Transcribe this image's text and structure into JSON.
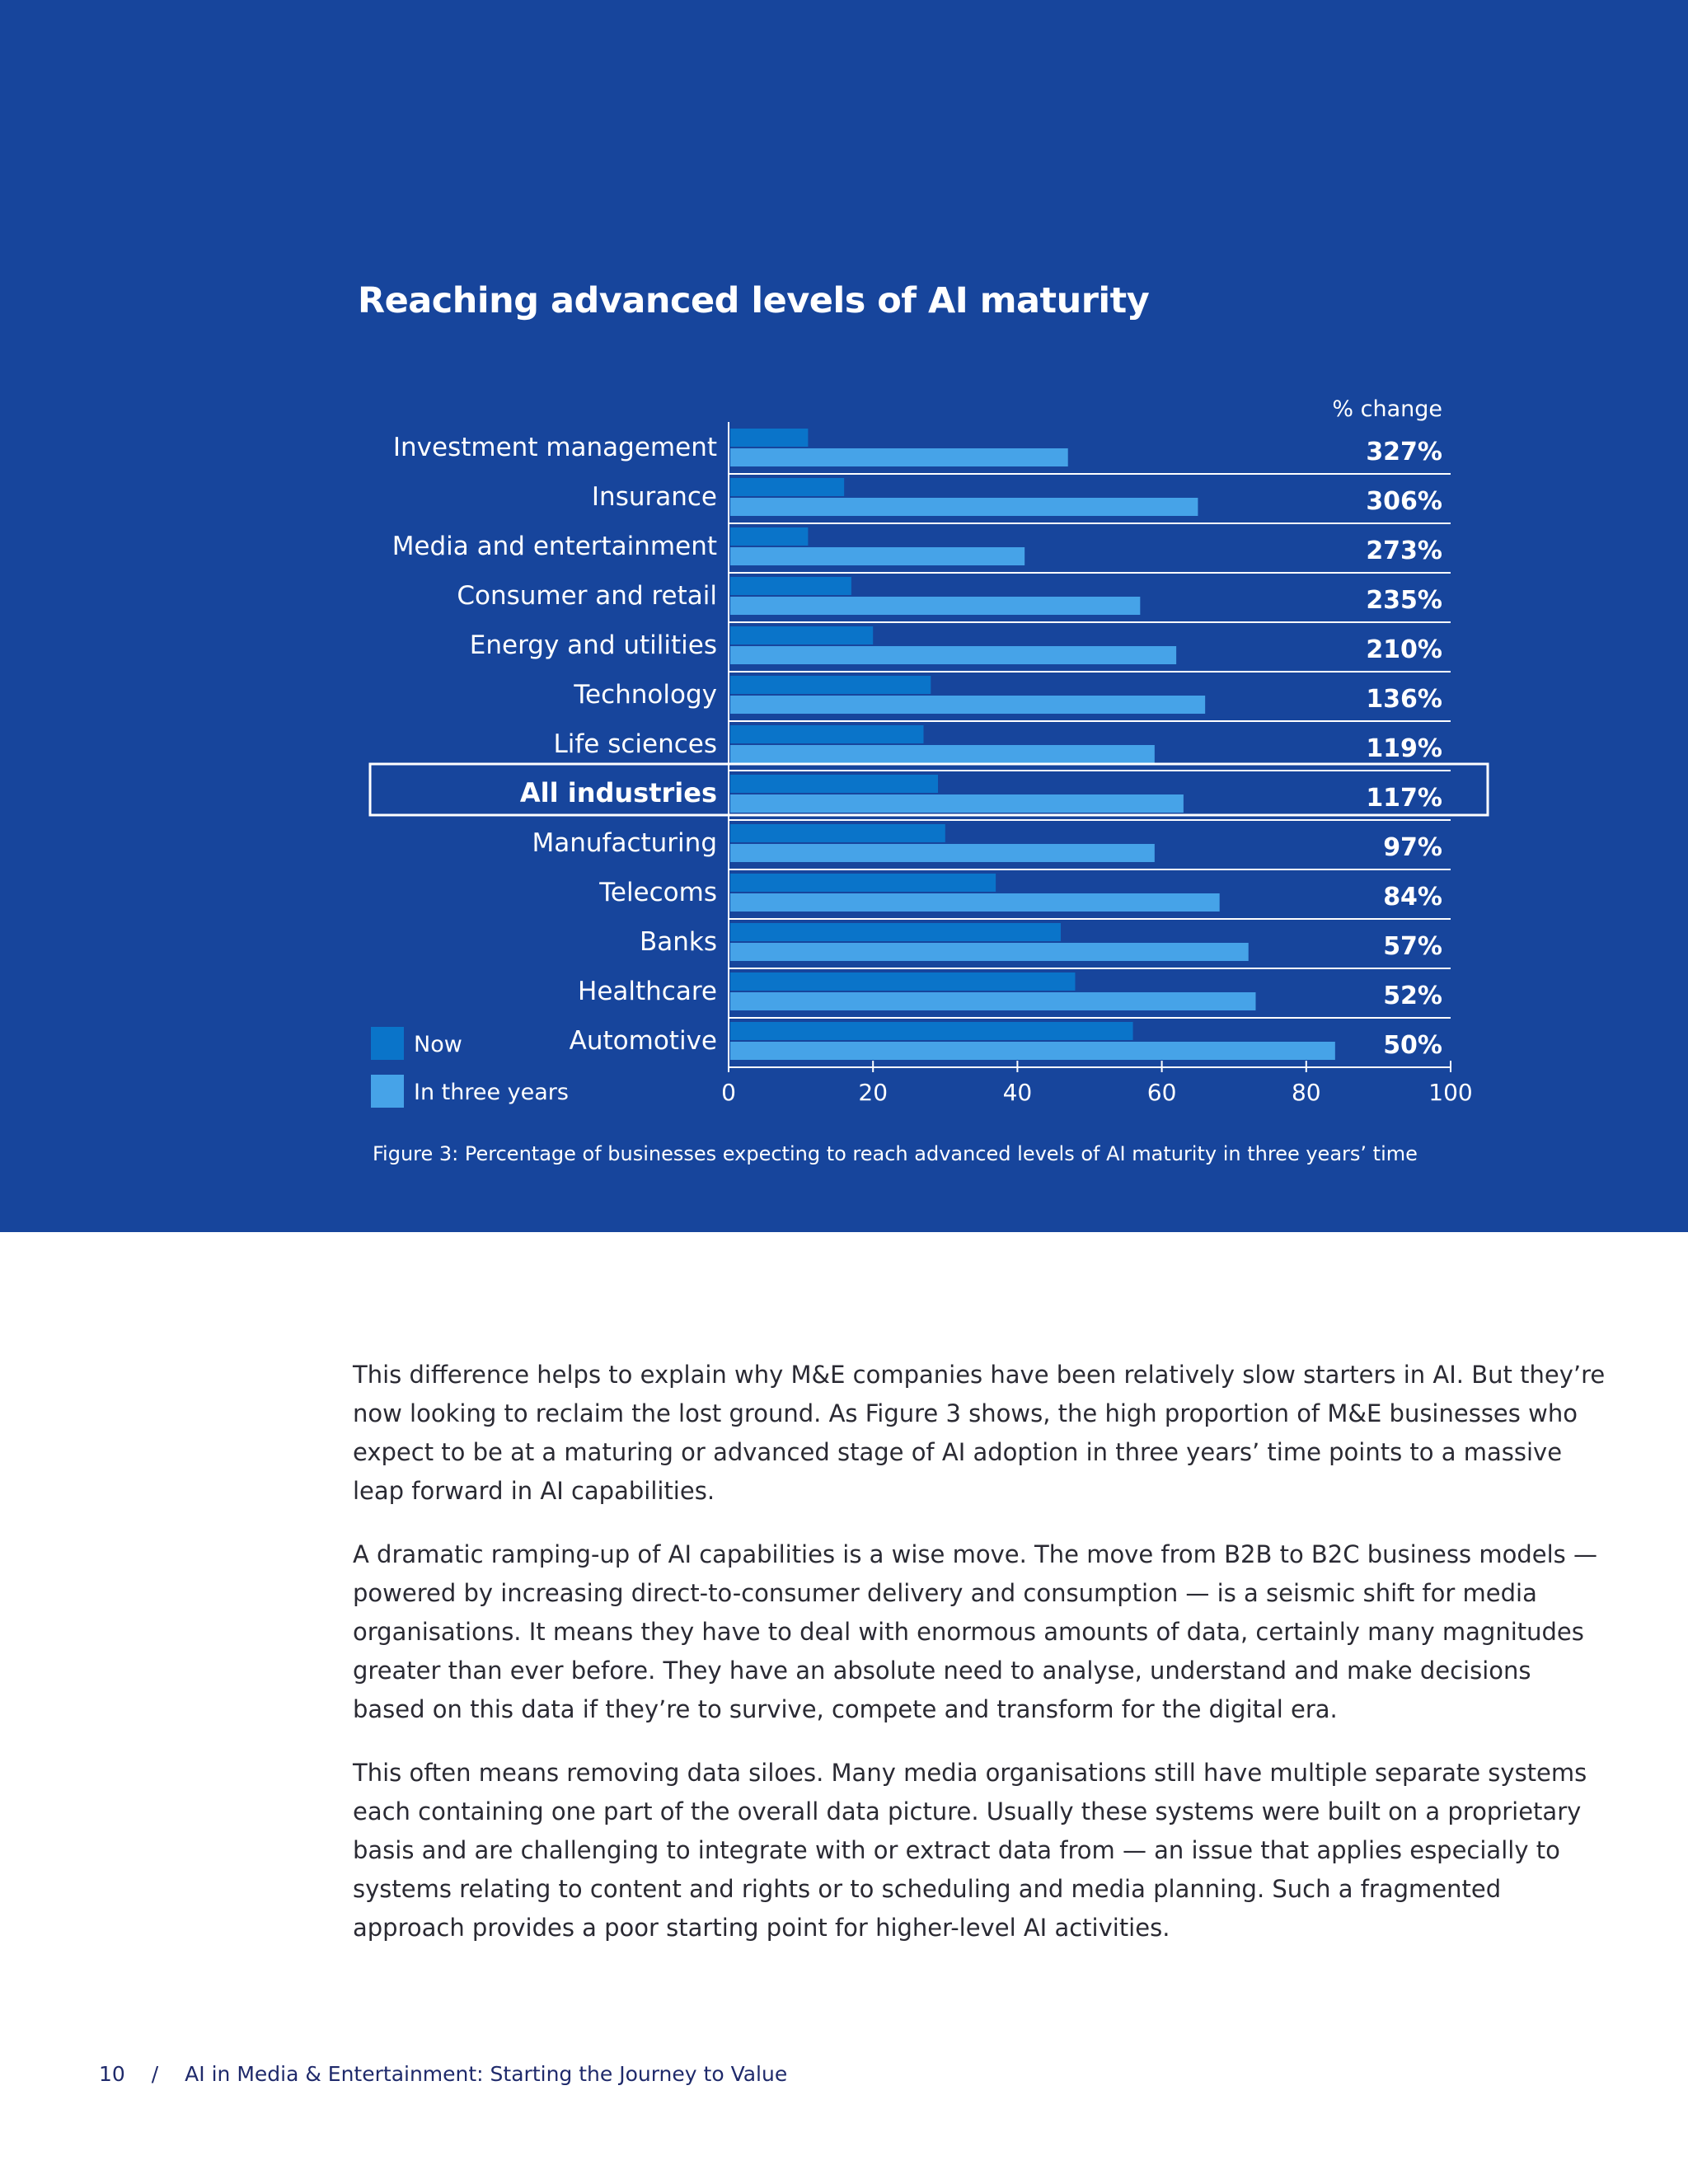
{
  "chart_data": {
    "type": "bar",
    "title": "Reaching advanced levels of AI maturity",
    "categories": [
      "Investment management",
      "Insurance",
      "Media and entertainment",
      "Consumer and retail",
      "Energy and utilities",
      "Technology",
      "Life sciences",
      "All industries",
      "Manufacturing",
      "Telecoms",
      "Banks",
      "Healthcare",
      "Automotive"
    ],
    "highlight_category": "All industries",
    "series": [
      {
        "name": "Now",
        "color": "#0a74c9",
        "values": [
          11,
          16,
          11,
          17,
          20,
          28,
          27,
          29,
          30,
          37,
          46,
          48,
          56
        ]
      },
      {
        "name": "In three years",
        "color": "#46a3e8",
        "values": [
          47,
          65,
          41,
          57,
          62,
          66,
          59,
          63,
          59,
          68,
          72,
          73,
          84
        ]
      }
    ],
    "change_header": "% change",
    "change_labels": [
      "327%",
      "306%",
      "273%",
      "235%",
      "210%",
      "136%",
      "119%",
      "117%",
      "97%",
      "84%",
      "57%",
      "52%",
      "50%"
    ],
    "xlim": [
      0,
      100
    ],
    "xticks": [
      0,
      20,
      40,
      60,
      80,
      100
    ],
    "legend": [
      {
        "label": "Now",
        "color": "#0a74c9"
      },
      {
        "label": "In three years",
        "color": "#46a3e8"
      }
    ],
    "legend_position": "bottom-left",
    "background": "#17459c"
  },
  "caption": "Figure 3: Percentage of businesses expecting to reach advanced levels of AI maturity in three years’ time",
  "body": {
    "paragraphs": [
      "This difference helps to explain why M&E companies have been relatively slow starters in AI. But they’re now looking to reclaim the lost ground. As Figure 3 shows, the high proportion of M&E businesses who expect to be at a maturing or advanced stage of AI adoption in three years’ time points to a massive leap forward in AI capabilities.",
      "A dramatic ramping-up of AI capabilities is a wise move. The move from B2B to B2C business models — powered by increasing direct-to-consumer delivery and consumption — is a seismic shift for media organisations. It means they have to deal with enormous amounts of data, certainly many magnitudes greater than ever before. They have an absolute need to analyse, understand and make decisions based on this data if they’re to survive, compete and transform for the digital era.",
      "This often means removing data siloes. Many media organisations still have multiple separate systems each containing one part of the overall data picture. Usually these systems were built on a proprietary basis and are challenging to integrate with or extract data from — an issue that applies especially to systems relating to content and rights or to scheduling and media planning. Such a fragmented approach provides a poor starting point for higher-level AI activities."
    ]
  },
  "footer": {
    "page_number": "10",
    "separator": "/",
    "doc_title": "AI in Media & Entertainment: Starting the Journey to Value"
  }
}
